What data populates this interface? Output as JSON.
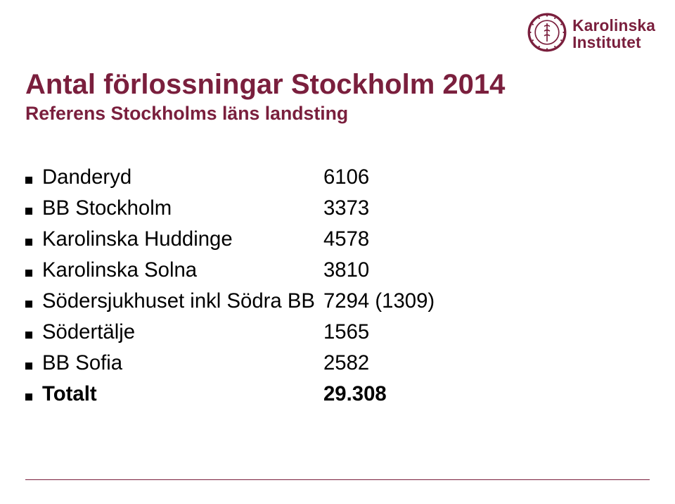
{
  "brand": {
    "name_line1": "Karolinska",
    "name_line2": "Institutet",
    "text_color": "#7a1f3d",
    "seal_color": "#7a1f3d",
    "font_size_pt": 17
  },
  "title": {
    "text": "Antal förlossningar Stockholm 2014",
    "color": "#7a1f3d",
    "font_size_pt": 30
  },
  "subtitle": {
    "text": "Referens Stockholms läns landsting",
    "color": "#7a1f3d",
    "font_size_pt": 20
  },
  "list": {
    "font_size_pt": 22,
    "text_color": "#000000",
    "bullet_color": "#000000",
    "items": [
      {
        "label": "Danderyd",
        "value": "6106"
      },
      {
        "label": "BB Stockholm",
        "value": "3373"
      },
      {
        "label": "Karolinska Huddinge",
        "value": "4578"
      },
      {
        "label": "Karolinska Solna",
        "value": "3810"
      },
      {
        "label": "Södersjukhuset inkl Södra BB",
        "value": "7294 (1309)"
      },
      {
        "label": "Södertälje",
        "value": "1565"
      },
      {
        "label": "BB Sofia",
        "value": "2582"
      }
    ]
  },
  "total": {
    "label": "Totalt",
    "value": "29.308",
    "font_size_pt": 22,
    "text_color": "#000000"
  },
  "footer": {
    "line_color": "#7a1f3d"
  }
}
